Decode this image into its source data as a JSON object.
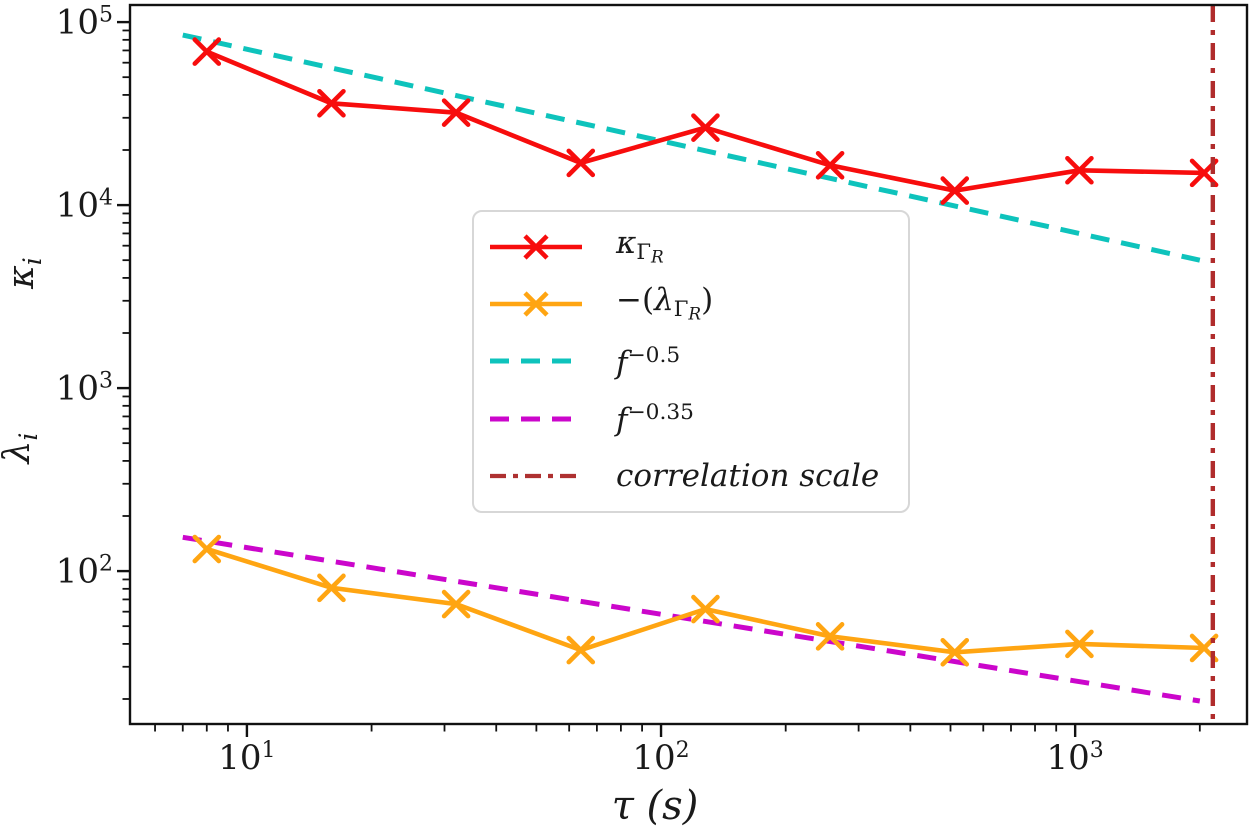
{
  "labels": {
    "xlabel": {
      "symbol": "τ",
      "unit": "(s)"
    },
    "ylabel_top": {
      "base": "κ",
      "sub": "i"
    },
    "ylabel_bottom": {
      "base": "λ",
      "sub": "i"
    }
  },
  "ticks": {
    "x": [
      {
        "base": "10",
        "exp": "1"
      },
      {
        "base": "10",
        "exp": "2"
      },
      {
        "base": "10",
        "exp": "3"
      }
    ],
    "y": [
      {
        "base": "10",
        "exp": "5"
      },
      {
        "base": "10",
        "exp": "4"
      },
      {
        "base": "10",
        "exp": "3"
      },
      {
        "base": "10",
        "exp": "2"
      }
    ]
  },
  "legend": {
    "entries": [
      {
        "pre": "",
        "base": "κ",
        "sub": "Γ",
        "sub2": "R",
        "post": "",
        "color": "#f70d0d"
      },
      {
        "pre": "−(",
        "base": "λ",
        "sub": "Γ",
        "sub2": "R",
        "post": ")",
        "color": "#ffa512"
      },
      {
        "base": "f",
        "sup": "−0.5",
        "color": "#0ec3bc"
      },
      {
        "base": "f",
        "sup": "−0.35",
        "color": "#cb06cb"
      },
      {
        "text": "correlation scale",
        "color": "#ae3131"
      }
    ]
  },
  "chart_data": {
    "type": "line",
    "xscale": "log",
    "yscale": "log",
    "xlabel": "τ (s)",
    "ylabel": "λ_i (bottom), κ_i (top)",
    "xlim": [
      5.22,
      2600
    ],
    "ylim": [
      14.6,
      124000
    ],
    "grid": false,
    "legend_position": "center",
    "x": [
      8,
      16,
      32,
      64,
      128,
      256,
      512,
      1024,
      2048
    ],
    "series": [
      {
        "name": "kappa_Gamma_R",
        "label": "κ_ΓR",
        "color": "#f70d0d",
        "marker": "x",
        "values": [
          69000,
          36000,
          32000,
          17000,
          26500,
          16500,
          12000,
          15500,
          15000
        ]
      },
      {
        "name": "neg_lambda_Gamma_R",
        "label": "−(λ_ΓR)",
        "color": "#ffa512",
        "marker": "x",
        "values": [
          132,
          81,
          66,
          37,
          62,
          44,
          36,
          40,
          38
        ]
      }
    ],
    "ref_lines": [
      {
        "name": "f^-0.5",
        "color": "#0ec3bc",
        "style": "dashed",
        "points": [
          [
            7,
            85000
          ],
          [
            2000,
            5000
          ]
        ]
      },
      {
        "name": "f^-0.35",
        "color": "#cb06cb",
        "style": "dashed",
        "points": [
          [
            7,
            153
          ],
          [
            2000,
            19.5
          ]
        ]
      }
    ],
    "vlines": [
      {
        "name": "correlation scale",
        "color": "#b02c2c",
        "style": "dashdot",
        "x": 2150
      }
    ],
    "xticks_major": [
      10,
      100,
      1000
    ],
    "yticks_major": [
      100000,
      10000,
      1000,
      100
    ]
  }
}
